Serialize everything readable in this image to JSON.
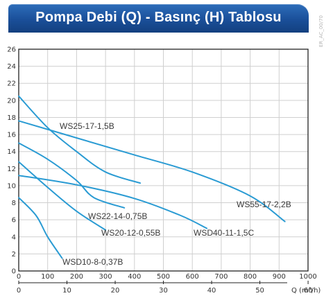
{
  "header": {
    "title": "Pompa Debi (Q) - Basınç (H) Tablosu"
  },
  "side_code": "ER_AC_00/70",
  "chart_data": {
    "type": "line",
    "title": "Pompa Debi (Q) - Basınç (H) Tablosu",
    "xlabel": "Q (m³/h)",
    "xlim": [
      0,
      1000
    ],
    "ylim": [
      0,
      26
    ],
    "x_ticks": [
      0,
      100,
      200,
      300,
      400,
      500,
      600,
      700,
      800,
      900,
      1000
    ],
    "x2_ticks": [
      0,
      10,
      20,
      30,
      40,
      50,
      60
    ],
    "x2_unit_factor": 16.67,
    "y_ticks": [
      0,
      2,
      4,
      6,
      8,
      10,
      12,
      14,
      16,
      18,
      20,
      22,
      24,
      26
    ],
    "grid": true,
    "line_color": "#2a9bd3",
    "series": [
      {
        "name": "WS25-17-1,5B",
        "points": [
          [
            0,
            20.5
          ],
          [
            100,
            16.8
          ],
          [
            200,
            14.0
          ],
          [
            300,
            11.6
          ],
          [
            420,
            10.3
          ]
        ]
      },
      {
        "name": "WS55-17-2,2B",
        "points": [
          [
            0,
            17.6
          ],
          [
            200,
            15.6
          ],
          [
            400,
            13.6
          ],
          [
            600,
            11.6
          ],
          [
            800,
            8.8
          ],
          [
            920,
            5.8
          ]
        ]
      },
      {
        "name": "WS22-14-0,75B",
        "points": [
          [
            0,
            15.0
          ],
          [
            100,
            13.1
          ],
          [
            200,
            10.6
          ],
          [
            260,
            8.6
          ],
          [
            365,
            7.4
          ]
        ]
      },
      {
        "name": "WSD40-11-1,5C",
        "points": [
          [
            0,
            11.2
          ],
          [
            200,
            10.1
          ],
          [
            400,
            8.5
          ],
          [
            560,
            6.5
          ],
          [
            650,
            5.0
          ]
        ]
      },
      {
        "name": "WS20-12-0,55B",
        "points": [
          [
            0,
            12.8
          ],
          [
            100,
            9.8
          ],
          [
            200,
            7.0
          ],
          [
            300,
            4.8
          ]
        ]
      },
      {
        "name": "WSD10-8-0,37B",
        "points": [
          [
            0,
            8.6
          ],
          [
            60,
            6.5
          ],
          [
            100,
            4.0
          ],
          [
            150,
            1.5
          ]
        ]
      }
    ]
  }
}
